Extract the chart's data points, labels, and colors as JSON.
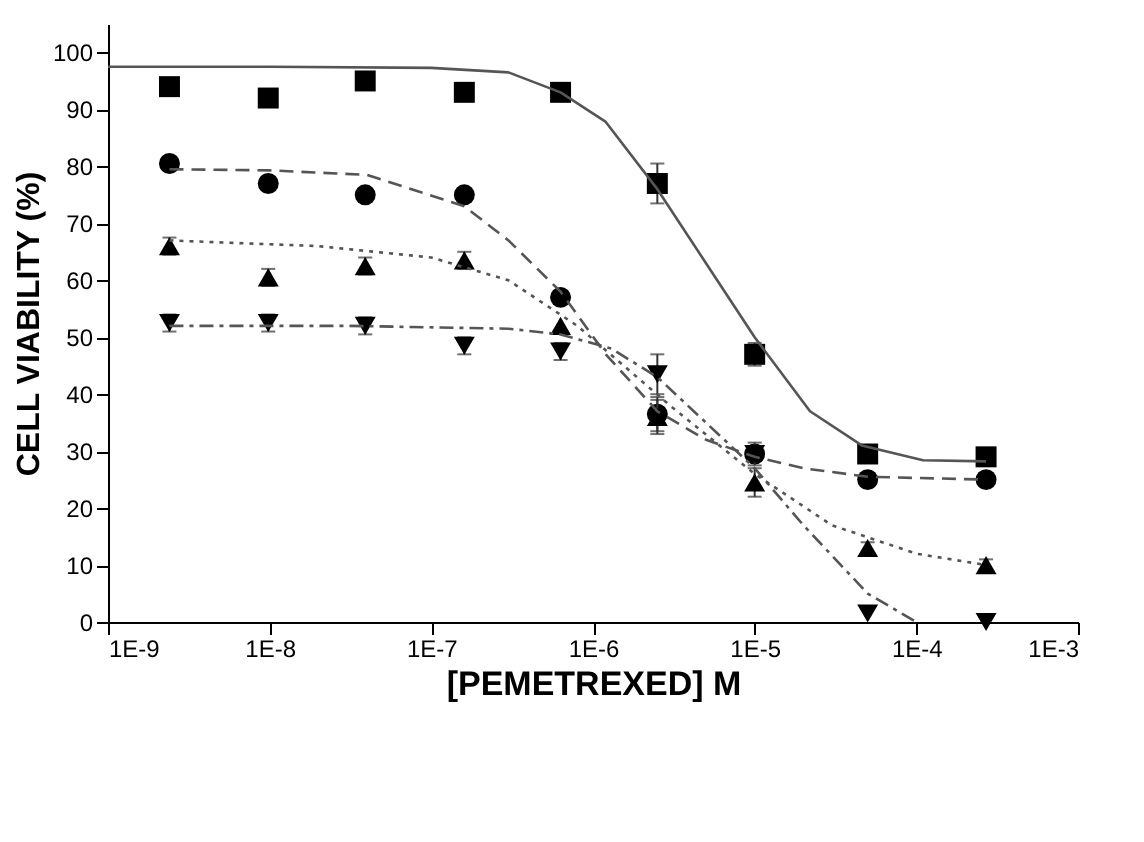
{
  "chart_data": {
    "type": "scatter",
    "xlabel": "[PEMETREXED] M",
    "ylabel": "CELL VIABILITY (%)",
    "log": "x",
    "grid": false,
    "xlim": [
      1e-09,
      0.001
    ],
    "xticks": [
      {
        "value": 1e-09,
        "label": "1E-9"
      },
      {
        "value": 1e-08,
        "label": "1E-8"
      },
      {
        "value": 1e-07,
        "label": "1E-7"
      },
      {
        "value": 1e-06,
        "label": "1E-6"
      },
      {
        "value": 1e-05,
        "label": "1E-5"
      },
      {
        "value": 0.0001,
        "label": "1E-4"
      },
      {
        "value": 0.001,
        "label": "1E-3"
      }
    ],
    "ylim": [
      0,
      105
    ],
    "yticks": [
      0,
      10,
      20,
      30,
      40,
      50,
      60,
      70,
      80,
      90,
      100
    ],
    "x": [
      2.4e-09,
      9.8e-09,
      3.9e-08,
      1.6e-07,
      6.3e-07,
      2.5e-06,
      1e-05,
      5e-05,
      0.00027
    ],
    "series": [
      {
        "type": "scatter",
        "marker": "square",
        "color": "#000000",
        "values": [
          94,
          92,
          95,
          93,
          93,
          77,
          47,
          29.5,
          29
        ],
        "errors": [
          null,
          null,
          null,
          null,
          1,
          3.5,
          2,
          null,
          null
        ]
      },
      {
        "type": "scatter",
        "marker": "circle",
        "color": "#000000",
        "values": [
          80.5,
          77,
          75,
          75,
          57,
          36.5,
          29.5,
          25,
          25
        ],
        "errors": [
          null,
          null,
          null,
          null,
          null,
          3,
          null,
          null,
          null
        ]
      },
      {
        "type": "scatter",
        "marker": "triangle",
        "color": "#000000",
        "values": [
          66,
          60.5,
          62.5,
          63.5,
          52,
          36,
          24.5,
          13,
          10
        ],
        "errors": [
          1.5,
          1.5,
          1.5,
          1.5,
          null,
          3,
          2.5,
          1,
          1
        ]
      },
      {
        "type": "scatter",
        "marker": "triangle-down",
        "color": "#000000",
        "values": [
          52.5,
          52.5,
          52,
          48.5,
          47.5,
          43.5,
          29.5,
          1.5,
          0
        ],
        "errors": [
          1.5,
          1.5,
          1.5,
          1.5,
          1.5,
          3.5,
          2,
          null,
          null
        ]
      },
      {
        "type": "line",
        "line_style": "solid",
        "marker": "none",
        "color": "#555555",
        "x": [
          1e-09,
          1e-08,
          1e-07,
          3e-07,
          6.3e-07,
          1.2e-06,
          2.5e-06,
          5e-06,
          1e-05,
          2.2e-05,
          4.6e-05,
          0.00011,
          0.00027
        ],
        "values": [
          97.5,
          97.5,
          97.3,
          96.5,
          93,
          87.8,
          76,
          63,
          50,
          37,
          31,
          28.4,
          28.2
        ]
      },
      {
        "type": "line",
        "line_style": "dashed",
        "marker": "none",
        "color": "#555555",
        "x": [
          2.4e-09,
          1e-08,
          4e-08,
          1.6e-07,
          3e-07,
          6.3e-07,
          1.2e-06,
          2.5e-06,
          5e-06,
          1e-05,
          2e-05,
          5e-05,
          0.00027
        ],
        "values": [
          79.5,
          79.3,
          78.5,
          73,
          67,
          58,
          47,
          37,
          32,
          29,
          27,
          25.5,
          25
        ]
      },
      {
        "type": "line",
        "line_style": "dotted",
        "marker": "none",
        "color": "#555555",
        "x": [
          2.4e-09,
          2e-08,
          1e-07,
          3e-07,
          8e-07,
          3e-06,
          1e-05,
          3e-05,
          0.0001,
          0.00027
        ],
        "values": [
          67,
          66,
          64,
          60,
          52,
          38,
          26,
          17,
          12,
          10
        ]
      },
      {
        "type": "line",
        "line_style": "dashdot",
        "marker": "none",
        "color": "#555555",
        "x": [
          2.4e-09,
          3e-08,
          3e-07,
          6.3e-07,
          1.3e-06,
          2.5e-06,
          5e-06,
          1e-05,
          2e-05,
          5e-05,
          0.0001
        ],
        "values": [
          52,
          52,
          51.5,
          50.5,
          48,
          43,
          35,
          27,
          17,
          5,
          0
        ]
      }
    ]
  }
}
